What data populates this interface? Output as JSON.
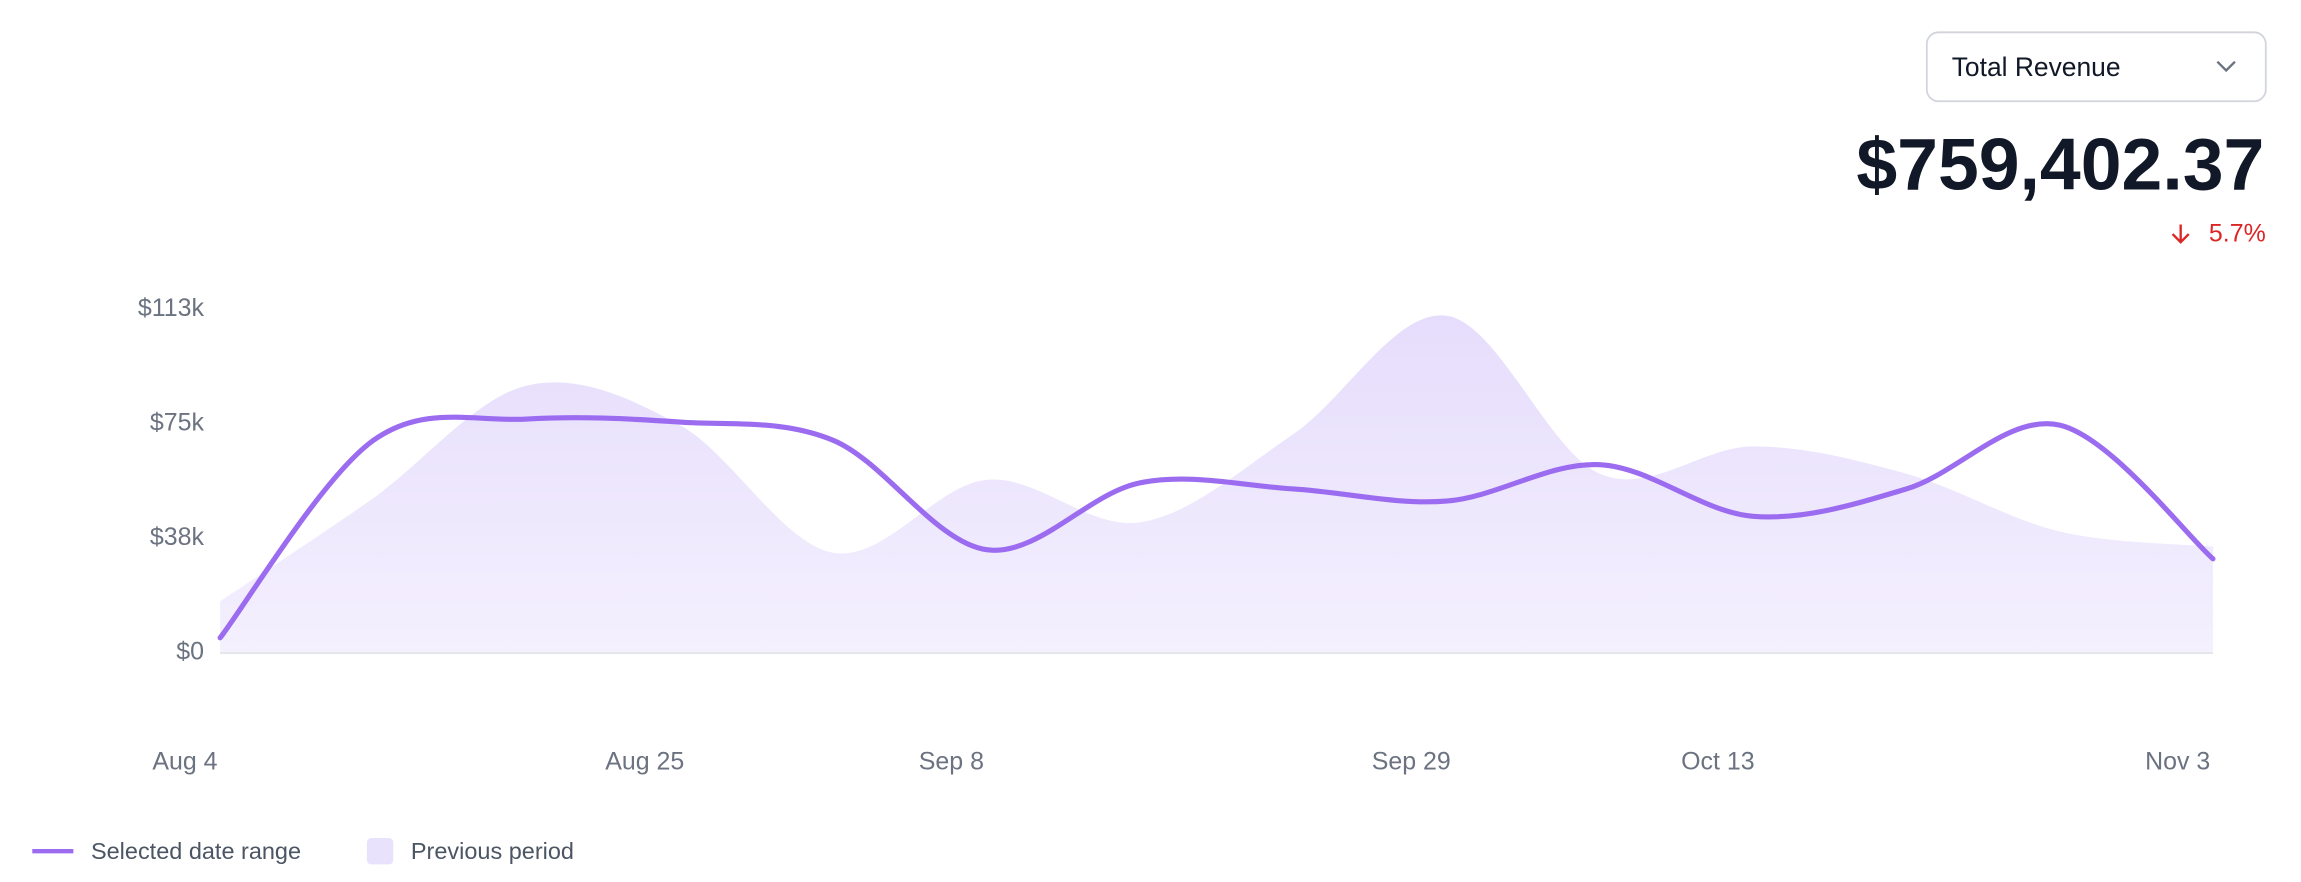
{
  "header": {
    "metric_select": "Total Revenue",
    "total": "$759,402.37",
    "change": "5.7%"
  },
  "chart_data": {
    "type": "line",
    "categories": [
      "Aug 4",
      null,
      null,
      "Aug 25",
      null,
      "Sep 8",
      null,
      null,
      "Sep 29",
      null,
      "Oct 13",
      null,
      null,
      "Nov 3"
    ],
    "series": [
      {
        "name": "Selected date range",
        "color": "#9b6cf0",
        "type": "line",
        "values": [
          5000,
          70000,
          77000,
          76000,
          70000,
          34000,
          56000,
          54000,
          50000,
          62000,
          45000,
          54000,
          75000,
          31000
        ]
      },
      {
        "name": "Previous period",
        "color": "#e9e2fd",
        "type": "area",
        "values": [
          17000,
          51000,
          88000,
          75000,
          33000,
          57000,
          43000,
          72000,
          111000,
          59000,
          68000,
          59000,
          40000,
          35000
        ]
      }
    ],
    "ylim": [
      0,
      113000
    ],
    "yticks": [
      {
        "value": 0,
        "label": "$0"
      },
      {
        "value": 37667,
        "label": "$38k"
      },
      {
        "value": 75333,
        "label": "$75k"
      },
      {
        "value": 113000,
        "label": "$113k"
      }
    ]
  }
}
